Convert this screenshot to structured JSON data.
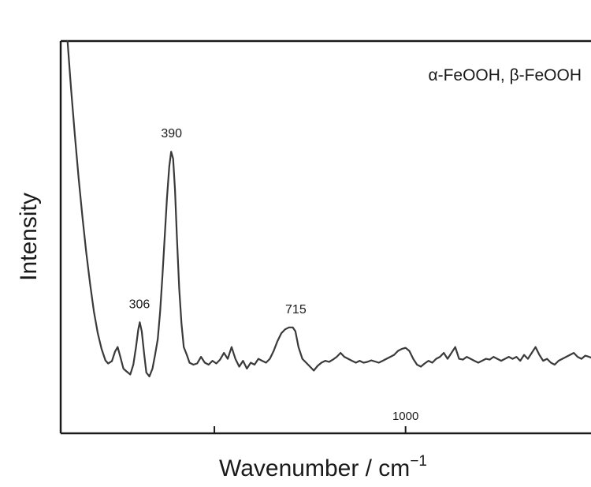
{
  "chart_data": {
    "type": "line",
    "title": "",
    "xlabel": "Wavenumber / cm",
    "xlabel_superscript": "−1",
    "ylabel": "Intensity",
    "legend": "α-FeOOH, β-FeOOH",
    "legend_position": "top-right",
    "grid": false,
    "y_ticks_shown": false,
    "xlim": [
      98,
      1485
    ],
    "ylim": [
      0,
      100
    ],
    "x_ticks": [
      {
        "value": 1000,
        "label": "1000"
      }
    ],
    "x_minor_ticks": [
      500
    ],
    "peaks": [
      {
        "x": 306,
        "label": "306"
      },
      {
        "x": 390,
        "label": "390"
      },
      {
        "x": 715,
        "label": "715"
      }
    ],
    "series": [
      {
        "points": [
          [
            116,
            100
          ],
          [
            125,
            88
          ],
          [
            135,
            76
          ],
          [
            145,
            65
          ],
          [
            155,
            55
          ],
          [
            165,
            46
          ],
          [
            175,
            38
          ],
          [
            185,
            31
          ],
          [
            195,
            25.5
          ],
          [
            205,
            21.5
          ],
          [
            215,
            18.6
          ],
          [
            222,
            17.8
          ],
          [
            232,
            18.4
          ],
          [
            240,
            20.8
          ],
          [
            247,
            22
          ],
          [
            254,
            19.5
          ],
          [
            262,
            16.5
          ],
          [
            270,
            15.8
          ],
          [
            280,
            15
          ],
          [
            288,
            17.5
          ],
          [
            295,
            22
          ],
          [
            301,
            26.5
          ],
          [
            305,
            28.3
          ],
          [
            310,
            26
          ],
          [
            316,
            20.5
          ],
          [
            322,
            15.5
          ],
          [
            330,
            14.5
          ],
          [
            338,
            16.5
          ],
          [
            345,
            20
          ],
          [
            352,
            24
          ],
          [
            358,
            31
          ],
          [
            364,
            40
          ],
          [
            370,
            50
          ],
          [
            376,
            60
          ],
          [
            382,
            68
          ],
          [
            387,
            71.8
          ],
          [
            392,
            70
          ],
          [
            397,
            62
          ],
          [
            402,
            50
          ],
          [
            408,
            37
          ],
          [
            414,
            28
          ],
          [
            420,
            22
          ],
          [
            428,
            20
          ],
          [
            435,
            18
          ],
          [
            445,
            17.5
          ],
          [
            455,
            17.8
          ],
          [
            465,
            19.5
          ],
          [
            475,
            18
          ],
          [
            485,
            17.5
          ],
          [
            495,
            18.5
          ],
          [
            505,
            17.8
          ],
          [
            515,
            18.8
          ],
          [
            525,
            20.5
          ],
          [
            535,
            19
          ],
          [
            545,
            22
          ],
          [
            555,
            19
          ],
          [
            565,
            17
          ],
          [
            575,
            18.5
          ],
          [
            585,
            16.5
          ],
          [
            595,
            18
          ],
          [
            605,
            17.5
          ],
          [
            615,
            19
          ],
          [
            625,
            18.5
          ],
          [
            635,
            18
          ],
          [
            645,
            19
          ],
          [
            655,
            21
          ],
          [
            665,
            23.5
          ],
          [
            675,
            25.5
          ],
          [
            685,
            26.5
          ],
          [
            695,
            27
          ],
          [
            705,
            27
          ],
          [
            712,
            26
          ],
          [
            720,
            22
          ],
          [
            730,
            19
          ],
          [
            740,
            18
          ],
          [
            750,
            17
          ],
          [
            760,
            16
          ],
          [
            770,
            17.2
          ],
          [
            780,
            18
          ],
          [
            790,
            18.5
          ],
          [
            800,
            18.2
          ],
          [
            810,
            18.8
          ],
          [
            820,
            19.5
          ],
          [
            830,
            20.5
          ],
          [
            840,
            19.5
          ],
          [
            850,
            19
          ],
          [
            860,
            18.5
          ],
          [
            870,
            18
          ],
          [
            880,
            18.5
          ],
          [
            890,
            18
          ],
          [
            900,
            18.2
          ],
          [
            910,
            18.6
          ],
          [
            920,
            18.3
          ],
          [
            930,
            18
          ],
          [
            940,
            18.5
          ],
          [
            950,
            19
          ],
          [
            960,
            19.5
          ],
          [
            970,
            20
          ],
          [
            980,
            21
          ],
          [
            990,
            21.5
          ],
          [
            1000,
            21.8
          ],
          [
            1010,
            21
          ],
          [
            1020,
            19
          ],
          [
            1030,
            17.5
          ],
          [
            1040,
            17
          ],
          [
            1050,
            17.8
          ],
          [
            1060,
            18.5
          ],
          [
            1070,
            18
          ],
          [
            1080,
            19
          ],
          [
            1090,
            19.5
          ],
          [
            1100,
            20.5
          ],
          [
            1110,
            19
          ],
          [
            1120,
            20.5
          ],
          [
            1130,
            22
          ],
          [
            1140,
            19
          ],
          [
            1150,
            18.8
          ],
          [
            1160,
            19.5
          ],
          [
            1170,
            19
          ],
          [
            1180,
            18.5
          ],
          [
            1190,
            18
          ],
          [
            1200,
            18.5
          ],
          [
            1210,
            19
          ],
          [
            1220,
            18.8
          ],
          [
            1230,
            19.5
          ],
          [
            1240,
            19
          ],
          [
            1250,
            18.5
          ],
          [
            1260,
            19
          ],
          [
            1270,
            19.5
          ],
          [
            1280,
            19
          ],
          [
            1290,
            19.5
          ],
          [
            1300,
            18.5
          ],
          [
            1310,
            20
          ],
          [
            1320,
            19
          ],
          [
            1330,
            20.5
          ],
          [
            1340,
            22
          ],
          [
            1350,
            20
          ],
          [
            1360,
            18.5
          ],
          [
            1370,
            19
          ],
          [
            1380,
            18
          ],
          [
            1390,
            17.5
          ],
          [
            1400,
            18.5
          ],
          [
            1410,
            19
          ],
          [
            1420,
            19.5
          ],
          [
            1430,
            20
          ],
          [
            1440,
            20.5
          ],
          [
            1450,
            19.5
          ],
          [
            1460,
            19
          ],
          [
            1470,
            19.8
          ],
          [
            1480,
            19.5
          ],
          [
            1485,
            19.3
          ]
        ]
      }
    ]
  }
}
